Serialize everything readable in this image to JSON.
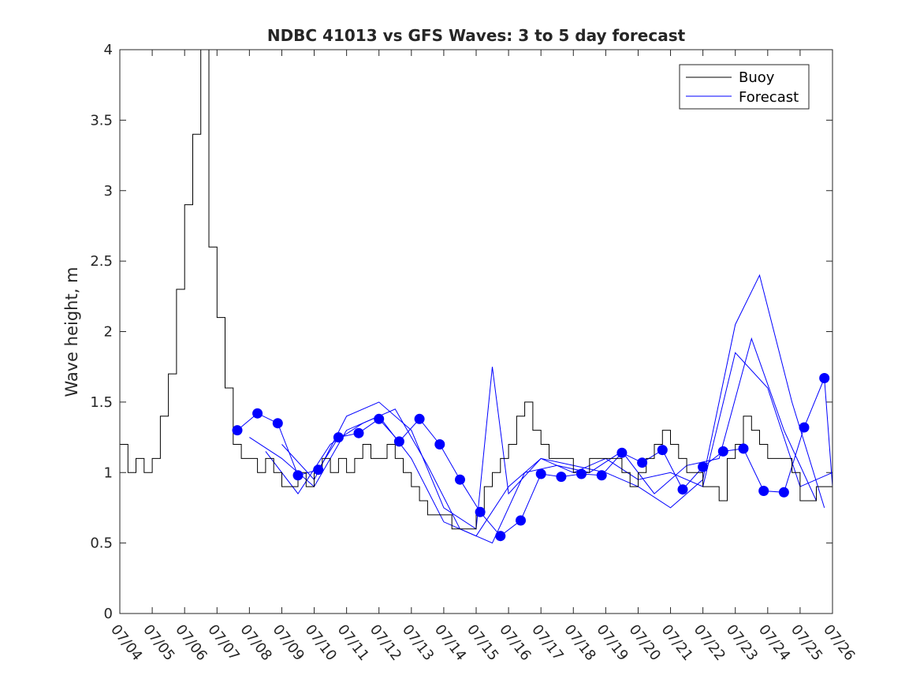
{
  "chart_data": {
    "type": "line",
    "title": "NDBC 41013 vs GFS Waves: 3 to 5 day forecast",
    "xlabel": "",
    "ylabel": "Wave height, m",
    "xlim": [
      "07/04",
      "07/26"
    ],
    "ylim": [
      0,
      4
    ],
    "x_ticks": [
      "07/04",
      "07/05",
      "07/06",
      "07/07",
      "07/08",
      "07/09",
      "07/10",
      "07/11",
      "07/12",
      "07/13",
      "07/14",
      "07/15",
      "07/16",
      "07/17",
      "07/18",
      "07/19",
      "07/20",
      "07/21",
      "07/22",
      "07/23",
      "07/24",
      "07/25",
      "07/26"
    ],
    "y_ticks": [
      0,
      0.5,
      1,
      1.5,
      2,
      2.5,
      3,
      3.5,
      4
    ],
    "legend": {
      "placement": "top-right",
      "entries": [
        "Buoy",
        "Forecast"
      ]
    },
    "colors": {
      "buoy": "#000000",
      "forecast": "#0000ff",
      "axis": "#262626"
    },
    "series": [
      {
        "name": "Buoy",
        "x": [
          "07/04 00:00",
          "07/04 06:00",
          "07/04 12:00",
          "07/04 18:00",
          "07/05 00:00",
          "07/05 06:00",
          "07/05 12:00",
          "07/05 18:00",
          "07/06 00:00",
          "07/06 06:00",
          "07/06 12:00",
          "07/06 18:00",
          "07/07 00:00",
          "07/07 06:00",
          "07/07 12:00",
          "07/07 18:00",
          "07/08 00:00",
          "07/08 06:00",
          "07/08 12:00",
          "07/08 18:00",
          "07/09 00:00",
          "07/09 06:00",
          "07/09 12:00",
          "07/09 18:00",
          "07/10 00:00",
          "07/10 06:00",
          "07/10 12:00",
          "07/10 18:00",
          "07/11 00:00",
          "07/11 06:00",
          "07/11 12:00",
          "07/11 18:00",
          "07/12 00:00",
          "07/12 06:00",
          "07/12 12:00",
          "07/12 18:00",
          "07/13 00:00",
          "07/13 06:00",
          "07/13 12:00",
          "07/13 18:00",
          "07/14 00:00",
          "07/14 06:00",
          "07/14 12:00",
          "07/14 18:00",
          "07/15 00:00",
          "07/15 06:00",
          "07/15 12:00",
          "07/15 18:00",
          "07/16 00:00",
          "07/16 06:00",
          "07/16 12:00",
          "07/16 18:00",
          "07/17 00:00",
          "07/17 06:00",
          "07/17 12:00",
          "07/17 18:00",
          "07/18 00:00",
          "07/18 06:00",
          "07/18 12:00",
          "07/18 18:00",
          "07/19 00:00",
          "07/19 06:00",
          "07/19 12:00",
          "07/19 18:00",
          "07/20 00:00",
          "07/20 06:00",
          "07/20 12:00",
          "07/20 18:00",
          "07/21 00:00",
          "07/21 06:00",
          "07/21 12:00",
          "07/21 18:00",
          "07/22 00:00",
          "07/22 06:00",
          "07/22 12:00",
          "07/22 18:00",
          "07/23 00:00",
          "07/23 06:00",
          "07/23 12:00",
          "07/23 18:00",
          "07/24 00:00",
          "07/24 06:00",
          "07/24 12:00",
          "07/24 18:00",
          "07/25 00:00",
          "07/25 06:00",
          "07/25 12:00",
          "07/25 18:00",
          "07/26 00:00"
        ],
        "values": [
          1.2,
          1.0,
          1.1,
          1.0,
          1.1,
          1.4,
          1.7,
          2.3,
          2.9,
          3.4,
          4.0,
          2.6,
          2.1,
          1.6,
          1.2,
          1.1,
          1.1,
          1.0,
          1.1,
          1.0,
          0.9,
          0.9,
          1.0,
          0.9,
          1.0,
          1.1,
          1.0,
          1.1,
          1.0,
          1.1,
          1.2,
          1.1,
          1.1,
          1.2,
          1.1,
          1.0,
          0.9,
          0.8,
          0.7,
          0.7,
          0.7,
          0.6,
          0.6,
          0.6,
          0.7,
          0.9,
          1.0,
          1.1,
          1.2,
          1.4,
          1.5,
          1.3,
          1.2,
          1.1,
          1.1,
          1.1,
          1.0,
          1.0,
          1.1,
          1.1,
          1.1,
          1.1,
          1.0,
          0.9,
          1.0,
          1.1,
          1.2,
          1.3,
          1.2,
          1.1,
          1.0,
          1.0,
          0.9,
          0.9,
          0.8,
          1.1,
          1.2,
          1.4,
          1.3,
          1.2,
          1.1,
          1.1,
          1.1,
          1.0,
          0.8,
          0.8,
          0.9,
          0.9,
          1.0
        ]
      },
      {
        "name": "Forecast",
        "runs": [
          {
            "x": [
              "07/07 15:00",
              "07/08 06:00",
              "07/08 21:00",
              "07/09 12:00",
              "07/10 03:00",
              "07/10 18:00",
              "07/11 09:00",
              "07/12 00:00",
              "07/12 15:00",
              "07/13 06:00",
              "07/13 21:00",
              "07/14 12:00",
              "07/15 03:00",
              "07/15 18:00",
              "07/16 09:00",
              "07/17 00:00",
              "07/17 15:00",
              "07/18 06:00",
              "07/18 21:00",
              "07/19 12:00",
              "07/20 03:00",
              "07/20 18:00",
              "07/21 09:00",
              "07/22 00:00",
              "07/22 15:00",
              "07/23 06:00",
              "07/23 21:00",
              "07/24 12:00",
              "07/25 03:00",
              "07/25 18:00",
              "07/26 00:00"
            ],
            "values": [
              1.3,
              1.42,
              1.35,
              0.98,
              1.02,
              1.25,
              1.28,
              1.38,
              1.22,
              1.38,
              1.2,
              0.95,
              0.72,
              0.55,
              0.66,
              0.99,
              0.97,
              0.99,
              0.98,
              1.14,
              1.07,
              1.16,
              0.88,
              1.04,
              1.15,
              1.17,
              0.87,
              0.86,
              1.32,
              1.67,
              0.9
            ]
          },
          {
            "x": [
              "07/08 00:00",
              "07/09 00:00",
              "07/10 00:00",
              "07/11 00:00",
              "07/12 00:00",
              "07/13 00:00",
              "07/14 00:00",
              "07/15 00:00",
              "07/16 00:00",
              "07/17 00:00",
              "07/18 00:00",
              "07/19 00:00",
              "07/20 00:00",
              "07/21 00:00",
              "07/22 00:00",
              "07/23 00:00",
              "07/24 00:00",
              "07/25 00:00",
              "07/26 00:00"
            ],
            "values": [
              1.25,
              1.1,
              0.9,
              1.3,
              1.4,
              1.1,
              0.65,
              0.55,
              0.9,
              1.1,
              1.0,
              1.1,
              0.95,
              1.0,
              0.9,
              1.85,
              1.6,
              0.9,
              1.0
            ]
          },
          {
            "x": [
              "07/08 12:00",
              "07/09 12:00",
              "07/10 12:00",
              "07/11 12:00",
              "07/12 12:00",
              "07/13 12:00",
              "07/14 12:00",
              "07/15 12:00",
              "07/16 12:00",
              "07/17 12:00",
              "07/18 12:00",
              "07/19 12:00",
              "07/20 12:00",
              "07/21 12:00",
              "07/22 12:00",
              "07/23 12:00",
              "07/24 12:00",
              "07/25 12:00"
            ],
            "values": [
              1.15,
              0.85,
              1.2,
              1.35,
              1.45,
              1.05,
              0.6,
              0.5,
              1.0,
              1.05,
              1.0,
              1.15,
              0.85,
              1.05,
              1.1,
              1.95,
              1.3,
              0.8
            ]
          },
          {
            "x": [
              "07/09 00:00",
              "07/10 00:00",
              "07/11 00:00",
              "07/12 00:00",
              "07/13 00:00",
              "07/14 00:00",
              "07/15 00:00",
              "07/15 12:00",
              "07/16 00:00",
              "07/17 00:00",
              "07/18 00:00",
              "07/19 00:00",
              "07/20 00:00",
              "07/21 00:00",
              "07/22 00:00",
              "07/23 00:00",
              "07/23 18:00",
              "07/24 18:00",
              "07/25 18:00"
            ],
            "values": [
              1.2,
              0.95,
              1.4,
              1.5,
              1.3,
              0.75,
              0.6,
              1.75,
              0.85,
              1.1,
              1.05,
              1.0,
              0.9,
              0.75,
              0.95,
              2.05,
              2.4,
              1.5,
              0.75
            ]
          }
        ]
      }
    ]
  }
}
